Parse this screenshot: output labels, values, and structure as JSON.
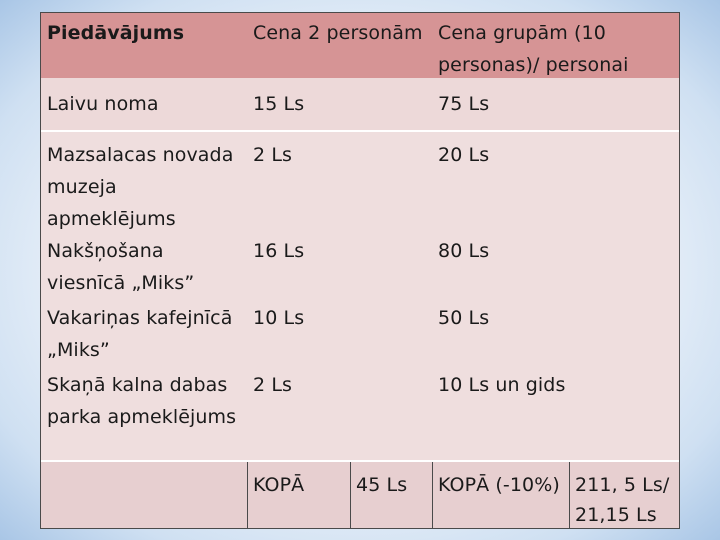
{
  "table": {
    "headers": {
      "col1": "Piedāvājums",
      "col2": "Cena 2 personām",
      "col3_line1": "Cena grupām (10",
      "col3_line2": "personas)/ personai"
    },
    "rows": [
      {
        "item": "Laivu noma",
        "price2": "15 Ls",
        "price_group": "75 Ls"
      },
      {
        "item_line1": "Mazsalacas novada",
        "item_line2": "muzeja",
        "item_line3": "apmeklējums",
        "price2": "2 Ls",
        "price_group": "20 Ls"
      },
      {
        "item_line1": "Nakšņošana",
        "item_line2": "viesnīcā „Miks”",
        "price2": "16 Ls",
        "price_group": "80 Ls"
      },
      {
        "item_line1": "Vakariņas kafejnīcā",
        "item_line2": "„Miks”",
        "price2": "10 Ls",
        "price_group": "50 Ls"
      },
      {
        "item_line1": "Skaņā kalna dabas",
        "item_line2": "parka apmeklējums",
        "price2": "2 Ls",
        "price_group": "10 Ls un gids"
      }
    ],
    "total": {
      "label2": "KOPĀ",
      "value2": "45 Ls",
      "label_group": "KOPĀ (-10%)",
      "value_group_line1": "211, 5 Ls/",
      "value_group_line2": "21,15 Ls"
    }
  }
}
